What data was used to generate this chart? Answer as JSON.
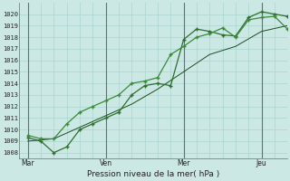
{
  "title": "",
  "xlabel": "Pression niveau de la mer( hPa )",
  "background_color": "#cce8e4",
  "grid_color_minor": "#aad4d0",
  "grid_color_major": "#88bbbb",
  "line_color1": "#2d6e2d",
  "line_color2": "#3a8a3a",
  "line_color3": "#1a4e1a",
  "ylim_min": 1007.5,
  "ylim_max": 1021.0,
  "yticks": [
    1008,
    1009,
    1010,
    1011,
    1012,
    1013,
    1014,
    1015,
    1016,
    1017,
    1018,
    1019,
    1020
  ],
  "xtick_labels": [
    "Mar",
    "Ven",
    "Mer",
    "Jeu"
  ],
  "xtick_positions": [
    0,
    36,
    72,
    108
  ],
  "xlim_min": -4,
  "xlim_max": 120,
  "vline_positions": [
    0,
    36,
    72,
    108
  ],
  "line1_x": [
    0,
    6,
    12,
    18,
    24,
    30,
    36,
    42,
    48,
    54,
    60,
    66,
    72,
    78,
    84,
    90,
    96,
    102,
    108,
    114,
    120
  ],
  "line1_y": [
    1009.3,
    1009.0,
    1008.0,
    1008.5,
    1010.0,
    1010.5,
    1011.0,
    1011.5,
    1013.0,
    1013.8,
    1014.0,
    1013.8,
    1017.8,
    1018.7,
    1018.5,
    1018.2,
    1018.1,
    1019.7,
    1020.2,
    1020.0,
    1019.8
  ],
  "line2_x": [
    0,
    6,
    12,
    18,
    24,
    30,
    36,
    42,
    48,
    54,
    60,
    66,
    72,
    78,
    84,
    90,
    96,
    102,
    108,
    114,
    120
  ],
  "line2_y": [
    1009.5,
    1009.2,
    1009.2,
    1010.5,
    1011.5,
    1012.0,
    1012.5,
    1013.0,
    1014.0,
    1014.2,
    1014.5,
    1016.5,
    1017.2,
    1018.0,
    1018.3,
    1018.8,
    1018.0,
    1019.5,
    1019.7,
    1019.8,
    1018.7
  ],
  "line3_x": [
    0,
    12,
    24,
    36,
    48,
    60,
    72,
    84,
    96,
    108,
    120
  ],
  "line3_y": [
    1009.0,
    1009.2,
    1010.2,
    1011.2,
    1012.2,
    1013.5,
    1015.0,
    1016.5,
    1017.2,
    1018.5,
    1019.0
  ],
  "marker": "+",
  "markersize": 3.5,
  "markeredgewidth": 1.0,
  "linewidth1": 0.9,
  "linewidth2": 0.9,
  "linewidth3": 0.7
}
